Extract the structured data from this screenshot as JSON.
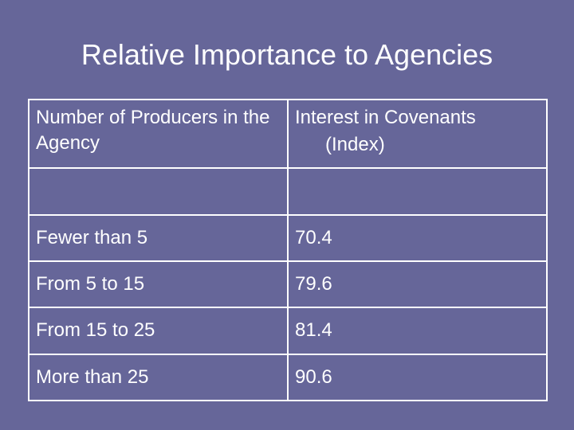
{
  "title": "Relative Importance to Agencies",
  "table": {
    "headers": {
      "col1": "Number of Producers in the Agency",
      "col2_line1": "Interest in Covenants",
      "col2_line2": "(Index)"
    },
    "rows": [
      {
        "producers": "Fewer than 5",
        "index": "70.4"
      },
      {
        "producers": "From 5 to 15",
        "index": "79.6"
      },
      {
        "producers": "From 15 to 25",
        "index": "81.4"
      },
      {
        "producers": "More than 25",
        "index": "90.6"
      }
    ]
  }
}
